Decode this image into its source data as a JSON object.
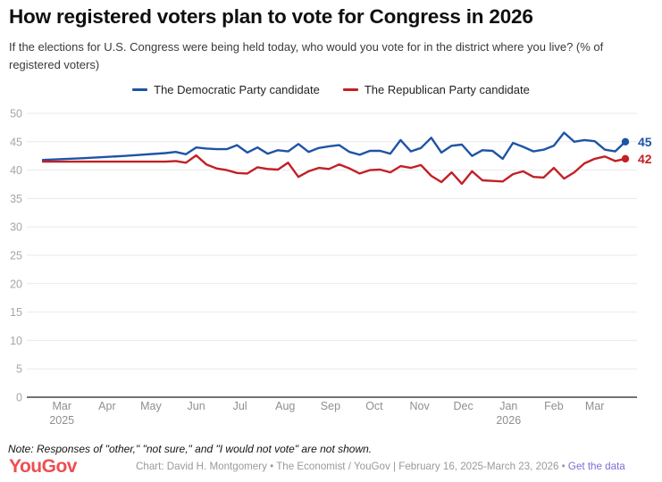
{
  "header": {
    "title": "How registered voters plan to vote for Congress in 2026",
    "subtitle": "If the elections for U.S. Congress were being held today, who would you vote for in the district where you live? (% of registered voters)"
  },
  "note": "Note: Responses of \"other,\" \"not sure,\" and \"I would not vote\" are not shown.",
  "footer": {
    "logo": "YouGov",
    "credit": "Chart: David H. Montgomery • The Economist / YouGov | February 16, 2025-March 23, 2026 • ",
    "link": "Get the data"
  },
  "chart_data": {
    "type": "line",
    "title": "How registered voters plan to vote for Congress in 2026",
    "ylabel": "% of registered voters",
    "ylim": [
      0,
      50
    ],
    "y_ticks": [
      0,
      5,
      10,
      15,
      20,
      25,
      30,
      35,
      40,
      45,
      50
    ],
    "grid": "horizontal",
    "legend_position": "top-center",
    "date_range": {
      "start": "2025-02-16",
      "end": "2026-03-22"
    },
    "x": [
      "2025-02-16",
      "2025-03-16",
      "2025-04-13",
      "2025-05-11",
      "2025-05-18",
      "2025-05-25",
      "2025-06-01",
      "2025-06-08",
      "2025-06-15",
      "2025-06-22",
      "2025-06-29",
      "2025-07-06",
      "2025-07-13",
      "2025-07-20",
      "2025-07-27",
      "2025-08-03",
      "2025-08-10",
      "2025-08-17",
      "2025-08-24",
      "2025-08-31",
      "2025-09-07",
      "2025-09-14",
      "2025-09-21",
      "2025-09-28",
      "2025-10-05",
      "2025-10-12",
      "2025-10-19",
      "2025-10-26",
      "2025-11-02",
      "2025-11-09",
      "2025-11-16",
      "2025-11-23",
      "2025-11-30",
      "2025-12-07",
      "2025-12-14",
      "2025-12-21",
      "2025-12-28",
      "2026-01-04",
      "2026-01-11",
      "2026-01-18",
      "2026-01-25",
      "2026-02-01",
      "2026-02-08",
      "2026-02-15",
      "2026-02-22",
      "2026-03-01",
      "2026-03-08",
      "2026-03-15",
      "2026-03-22"
    ],
    "series": [
      {
        "name": "The Democratic Party candidate",
        "color": "#1e54a6",
        "end_label": "45",
        "values": [
          41.8,
          42.1,
          42.5,
          43.0,
          43.2,
          42.8,
          44.0,
          43.8,
          43.7,
          43.7,
          44.4,
          43.1,
          44.0,
          42.9,
          43.5,
          43.3,
          44.6,
          43.2,
          43.9,
          44.2,
          44.4,
          43.2,
          42.7,
          43.4,
          43.4,
          42.9,
          45.3,
          43.3,
          43.9,
          45.7,
          43.1,
          44.3,
          44.5,
          42.5,
          43.5,
          43.4,
          42.0,
          44.8,
          44.1,
          43.3,
          43.6,
          44.3,
          46.6,
          45.0,
          45.3,
          45.1,
          43.6,
          43.3,
          45.0
        ]
      },
      {
        "name": "The Republican Party candidate",
        "color": "#c22025",
        "end_label": "42",
        "values": [
          41.5,
          41.5,
          41.5,
          41.5,
          41.6,
          41.3,
          42.6,
          41.0,
          40.3,
          40.0,
          39.5,
          39.4,
          40.5,
          40.2,
          40.1,
          41.3,
          38.8,
          39.8,
          40.4,
          40.2,
          41.0,
          40.3,
          39.4,
          40.0,
          40.1,
          39.6,
          40.7,
          40.4,
          40.9,
          39.0,
          37.9,
          39.6,
          37.6,
          39.8,
          38.2,
          38.1,
          38.0,
          39.3,
          39.8,
          38.8,
          38.7,
          40.4,
          38.5,
          39.6,
          41.2,
          42.0,
          42.4,
          41.6,
          42.0
        ]
      }
    ],
    "x_axis_months": [
      {
        "label": "Mar",
        "year": "2025",
        "date": "2025-03-01"
      },
      {
        "label": "Apr",
        "year": "",
        "date": "2025-04-01"
      },
      {
        "label": "May",
        "year": "",
        "date": "2025-05-01"
      },
      {
        "label": "Jun",
        "year": "",
        "date": "2025-06-01"
      },
      {
        "label": "Jul",
        "year": "",
        "date": "2025-07-01"
      },
      {
        "label": "Aug",
        "year": "",
        "date": "2025-08-01"
      },
      {
        "label": "Sep",
        "year": "",
        "date": "2025-09-01"
      },
      {
        "label": "Oct",
        "year": "",
        "date": "2025-10-01"
      },
      {
        "label": "Nov",
        "year": "",
        "date": "2025-11-01"
      },
      {
        "label": "Dec",
        "year": "",
        "date": "2025-12-01"
      },
      {
        "label": "Jan",
        "year": "2026",
        "date": "2026-01-01"
      },
      {
        "label": "Feb",
        "year": "",
        "date": "2026-02-01"
      },
      {
        "label": "Mar",
        "year": "",
        "date": "2026-03-01"
      }
    ]
  }
}
